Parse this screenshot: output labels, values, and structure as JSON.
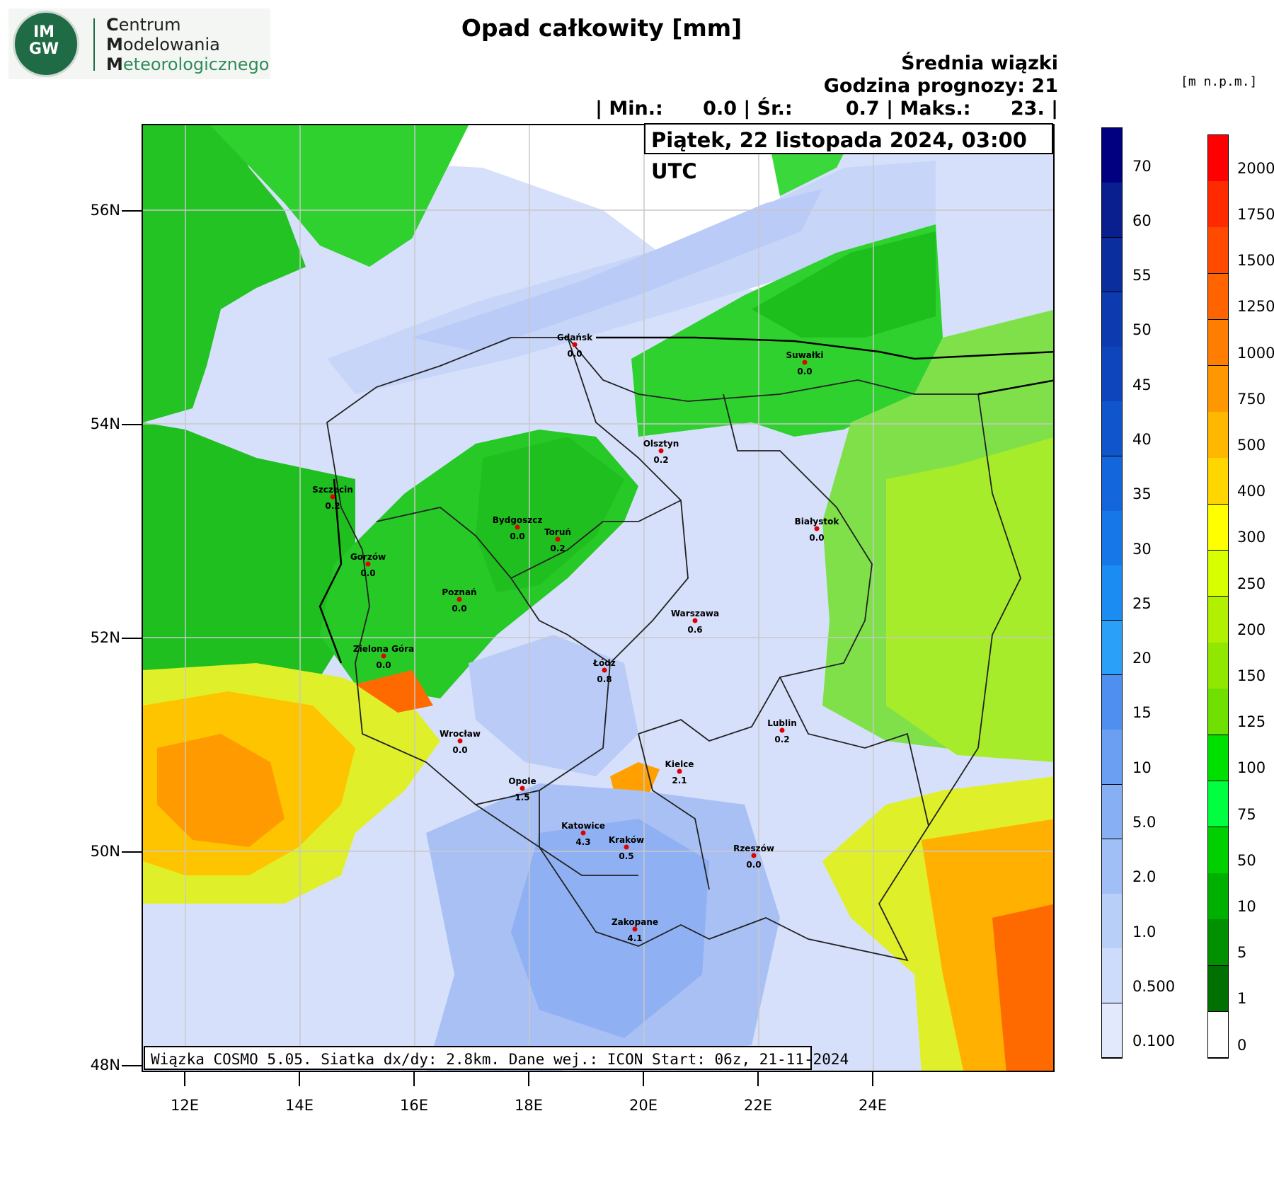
{
  "logo": {
    "badge_line1": "IM",
    "badge_line2": "GW",
    "line1_initial": "C",
    "line1_rest": "entrum",
    "line2_initial": "M",
    "line2_rest": "odelowania",
    "line3_initial": "M",
    "line3_rest": "eteorologicznego"
  },
  "title": "Opad całkowity [mm]",
  "header": {
    "line1": "Średnia wiązki",
    "line2": "Godzina prognozy: 21",
    "line3": "| Min.:      0.0 | Śr.:        0.7 | Maks.:      23. |"
  },
  "units_label": "[m n.p.m.]",
  "date_label": "Piątek, 22 listopada 2024, 03:00 UTC",
  "footer": "Wiązka COSMO 5.05. Siatka dx/dy: 2.8km. Dane wej.: ICON Start: 06z, 21-11-2024",
  "axes": {
    "lat_labels": [
      "56N",
      "54N",
      "52N",
      "50N",
      "48N"
    ],
    "lon_labels": [
      "12E",
      "14E",
      "16E",
      "18E",
      "20E",
      "22E",
      "24E"
    ]
  },
  "precip_scale": {
    "labels": [
      "70",
      "60",
      "55",
      "50",
      "45",
      "40",
      "35",
      "30",
      "25",
      "20",
      "15",
      "10",
      "5.0",
      "2.0",
      "1.0",
      "0.500",
      "0.100"
    ],
    "colors": [
      "#000080",
      "#0a1f8f",
      "#0b2e9e",
      "#0d3aae",
      "#0e45bd",
      "#1055cc",
      "#1366db",
      "#1678e8",
      "#1a8cf2",
      "#2ba0f8",
      "#4f8ff0",
      "#6b9ff2",
      "#86aff4",
      "#9fbff6",
      "#b8cff8",
      "#cddcfa",
      "#e2e9fc"
    ]
  },
  "elevation_scale": {
    "labels": [
      "2000",
      "1750",
      "1500",
      "1250",
      "1000",
      "750",
      "500",
      "400",
      "300",
      "250",
      "200",
      "150",
      "125",
      "100",
      "75",
      "50",
      "10",
      "5",
      "1",
      "0"
    ],
    "colors": [
      "#ff0000",
      "#ff2a00",
      "#ff4a00",
      "#ff6400",
      "#ff7d00",
      "#ff9800",
      "#ffb800",
      "#ffd600",
      "#ffff00",
      "#d8ff00",
      "#b0f000",
      "#90e800",
      "#70e000",
      "#00e000",
      "#00ff40",
      "#00d000",
      "#00b000",
      "#009000",
      "#007000",
      "#ffffff"
    ]
  },
  "cities": [
    {
      "name": "Gdańsk",
      "value": "0.0"
    },
    {
      "name": "Suwałki",
      "value": "0.0"
    },
    {
      "name": "Olsztyn",
      "value": "0.2"
    },
    {
      "name": "Szczecin",
      "value": "0.2"
    },
    {
      "name": "Bydgoszcz",
      "value": "0.0"
    },
    {
      "name": "Toruń",
      "value": "0.2"
    },
    {
      "name": "Białystok",
      "value": "0.0"
    },
    {
      "name": "Gorzów",
      "value": "0.0"
    },
    {
      "name": "Poznań",
      "value": "0.0"
    },
    {
      "name": "Warszawa",
      "value": "0.6"
    },
    {
      "name": "Zielona Góra",
      "value": "0.0"
    },
    {
      "name": "Łódź",
      "value": "0.8"
    },
    {
      "name": "Lublin",
      "value": "0.2"
    },
    {
      "name": "Wrocław",
      "value": "0.0"
    },
    {
      "name": "Kielce",
      "value": "2.1"
    },
    {
      "name": "Opole",
      "value": "1.5"
    },
    {
      "name": "Katowice",
      "value": "4.3"
    },
    {
      "name": "Kraków",
      "value": "0.5"
    },
    {
      "name": "Rzeszów",
      "value": "0.0"
    },
    {
      "name": "Zakopane",
      "value": "4.1"
    }
  ]
}
